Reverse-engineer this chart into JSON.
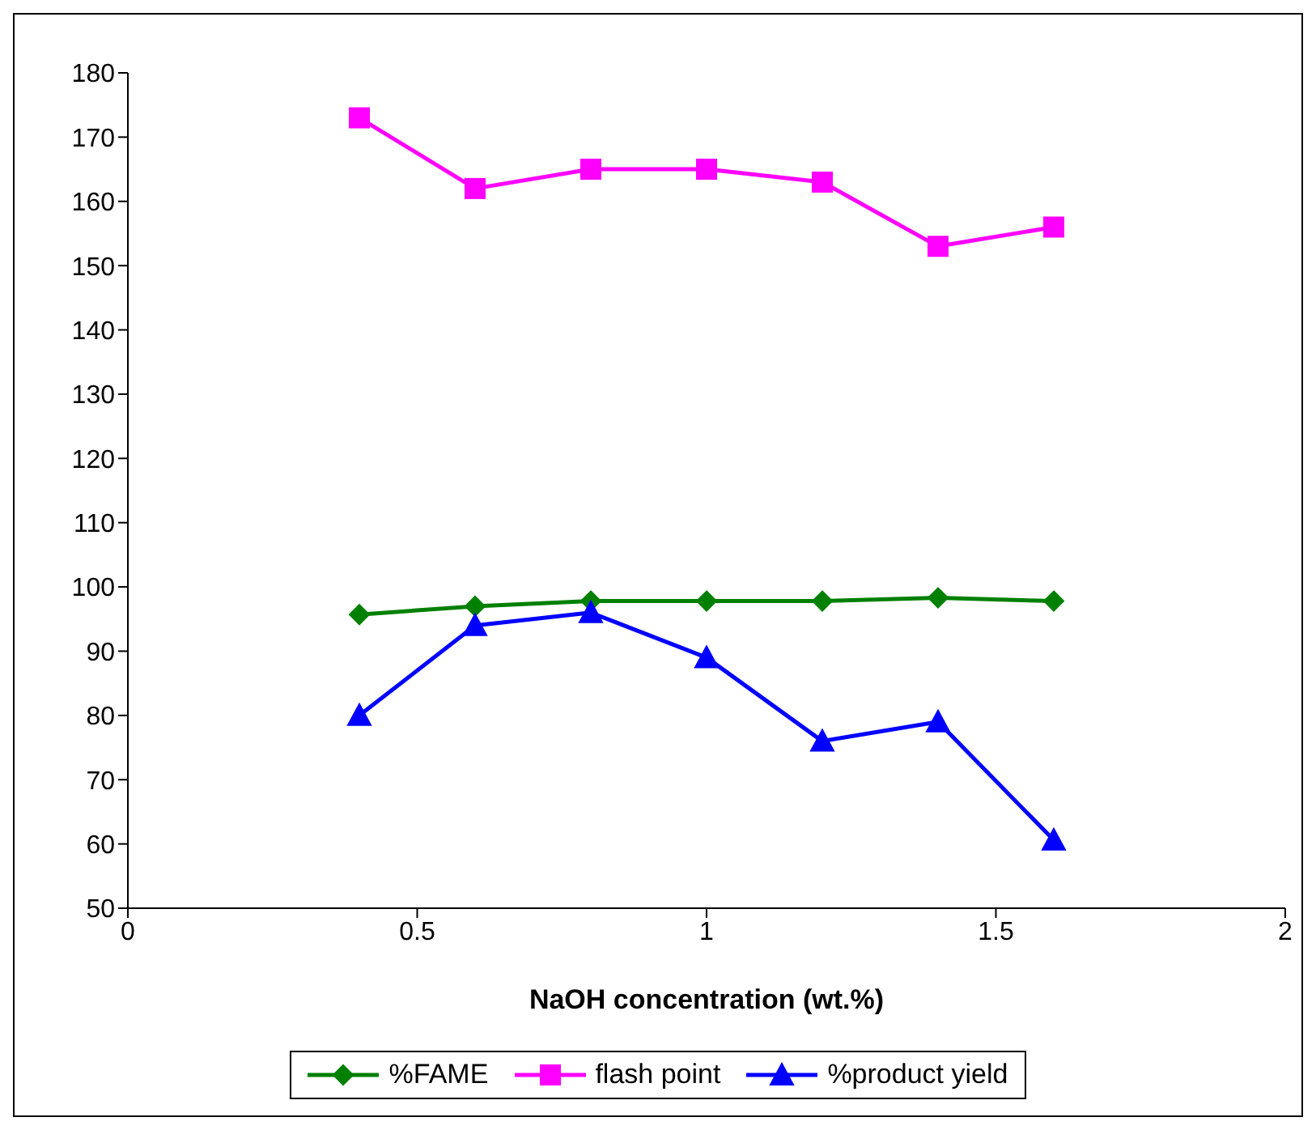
{
  "chart_data": {
    "type": "line",
    "xlabel": "NaOH concentration (wt.%)",
    "x": [
      0.4,
      0.6,
      0.8,
      1.0,
      1.2,
      1.4,
      1.6
    ],
    "series": [
      {
        "name": "%FAME",
        "color": "#008000",
        "marker": "diamond",
        "values": [
          95.7,
          97,
          97.8,
          97.8,
          97.8,
          98.3,
          97.8
        ]
      },
      {
        "name": "flash point",
        "color": "#ff00ff",
        "marker": "square",
        "values": [
          173,
          162,
          165,
          165,
          163,
          153,
          156
        ]
      },
      {
        "name": "%product yield",
        "color": "#0000ff",
        "marker": "triangle",
        "values": [
          80,
          94,
          96,
          89,
          76,
          79,
          60.6
        ]
      }
    ],
    "xlim": [
      0,
      2
    ],
    "xticks": [
      0,
      0.5,
      1,
      1.5,
      2
    ],
    "ylim": [
      50,
      180
    ],
    "yticks": [
      50,
      60,
      70,
      80,
      90,
      100,
      110,
      120,
      130,
      140,
      150,
      160,
      170,
      180
    ],
    "grid": false,
    "legend": "bottom",
    "line_style": "solid"
  }
}
